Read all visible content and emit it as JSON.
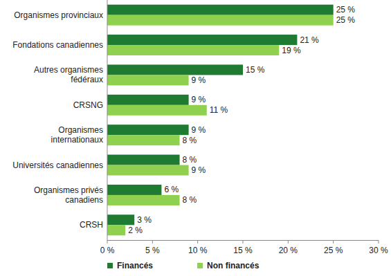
{
  "chart_data": {
    "type": "bar",
    "orientation": "horizontal",
    "categories": [
      "Organismes provinciaux",
      "Fondations canadiennes",
      "Autres organismes fédéraux",
      "CRSNG",
      "Organismes internationaux",
      "Universités canadiennes",
      "Organismes privés canadiens",
      "CRSH"
    ],
    "series": [
      {
        "name": "Financés",
        "color": "#1f7a32",
        "values": [
          25,
          21,
          15,
          9,
          9,
          8,
          6,
          3
        ],
        "value_labels": [
          "25 %",
          "21 %",
          "15 %",
          "9 %",
          "9 %",
          "8 %",
          "6 %",
          "3 %"
        ]
      },
      {
        "name": "Non financés",
        "color": "#8fd14f",
        "values": [
          25,
          19,
          9,
          11,
          8,
          9,
          8,
          2
        ],
        "value_labels": [
          "25 %",
          "19 %",
          "9 %",
          "11 %",
          "8 %",
          "9 %",
          "8 %",
          "2 %"
        ]
      }
    ],
    "xlim": [
      0,
      30
    ],
    "xticks": [
      {
        "value": 0,
        "label": "0 %"
      },
      {
        "value": 5,
        "label": "5 %"
      },
      {
        "value": 10,
        "label": "10 %"
      },
      {
        "value": 15,
        "label": "15 %"
      },
      {
        "value": 20,
        "label": "20 %"
      },
      {
        "value": 25,
        "label": "25 %"
      },
      {
        "value": 30,
        "label": "30 %"
      }
    ],
    "grid": false,
    "data_labels": true,
    "legend": "bottom-left"
  }
}
